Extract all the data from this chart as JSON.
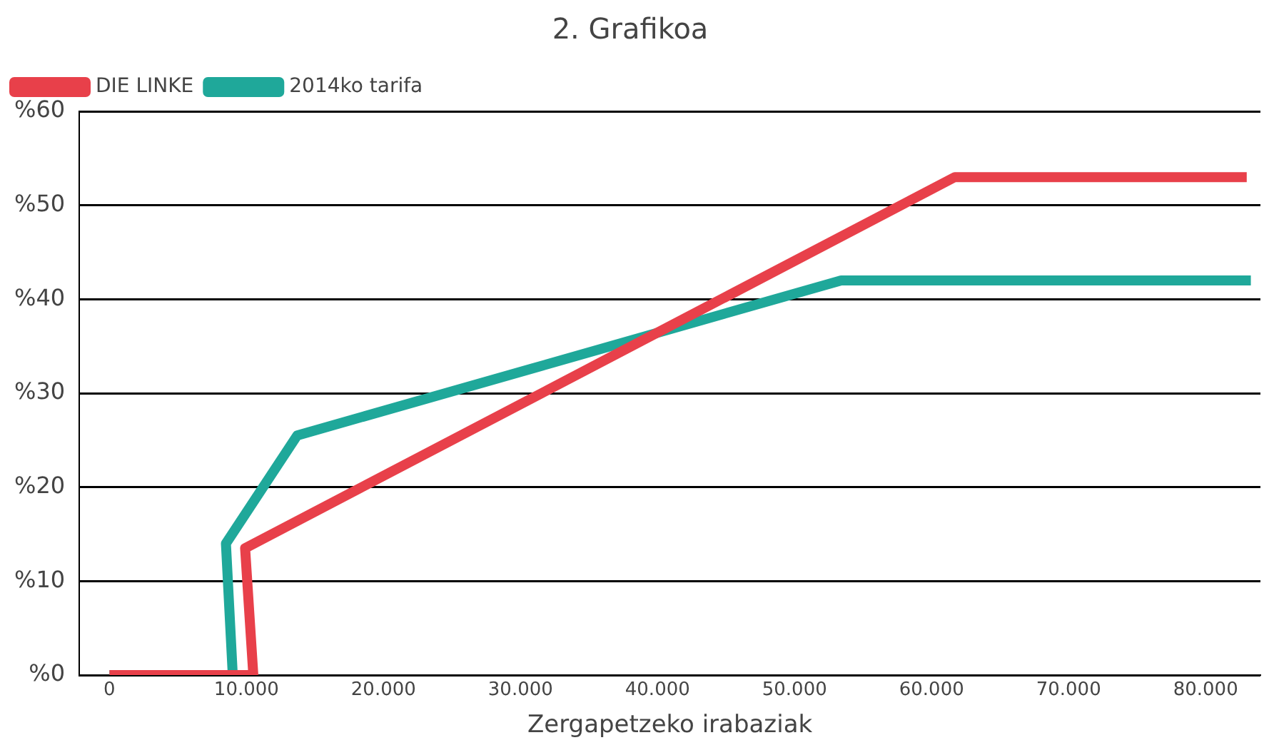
{
  "chart_data": {
    "type": "line",
    "title": "2. Grafikoa",
    "xlabel": "Zergapetzeko irabaziak",
    "xlim": [
      -2200,
      84000
    ],
    "xticks": [
      0,
      {
        "value": 10000,
        "label": "10.000"
      },
      {
        "value": 20000,
        "label": "20.000"
      },
      {
        "value": 30000,
        "label": "30.000"
      },
      {
        "value": 40000,
        "label": "40.000"
      },
      {
        "value": 50000,
        "label": "50.000"
      },
      {
        "value": 60000,
        "label": "60.000"
      },
      {
        "value": 70000,
        "label": "70.000"
      },
      {
        "value": 80000,
        "label": "80.000"
      }
    ],
    "ylim": [
      0,
      60
    ],
    "yticks": [
      {
        "value": 0,
        "label": "%0"
      },
      {
        "value": 10,
        "label": "%10"
      },
      {
        "value": 20,
        "label": "%20"
      },
      {
        "value": 30,
        "label": "%30"
      },
      {
        "value": 40,
        "label": "%40"
      },
      {
        "value": 50,
        "label": "%50"
      },
      {
        "value": 60,
        "label": "%60"
      }
    ],
    "grid": "y",
    "legend": "top left",
    "series": [
      {
        "name": "DIE LINKE",
        "color": "#e8404a",
        "x": [
          0,
          10500,
          9900,
          61700,
          83000
        ],
        "values": [
          0,
          0,
          13.5,
          53,
          53
        ]
      },
      {
        "name": "2014ko tarifa",
        "color": "#1fa89a",
        "x": [
          0,
          9000,
          8500,
          13700,
          53400,
          83300
        ],
        "values": [
          0,
          0,
          14,
          25.5,
          42,
          42
        ]
      }
    ]
  }
}
